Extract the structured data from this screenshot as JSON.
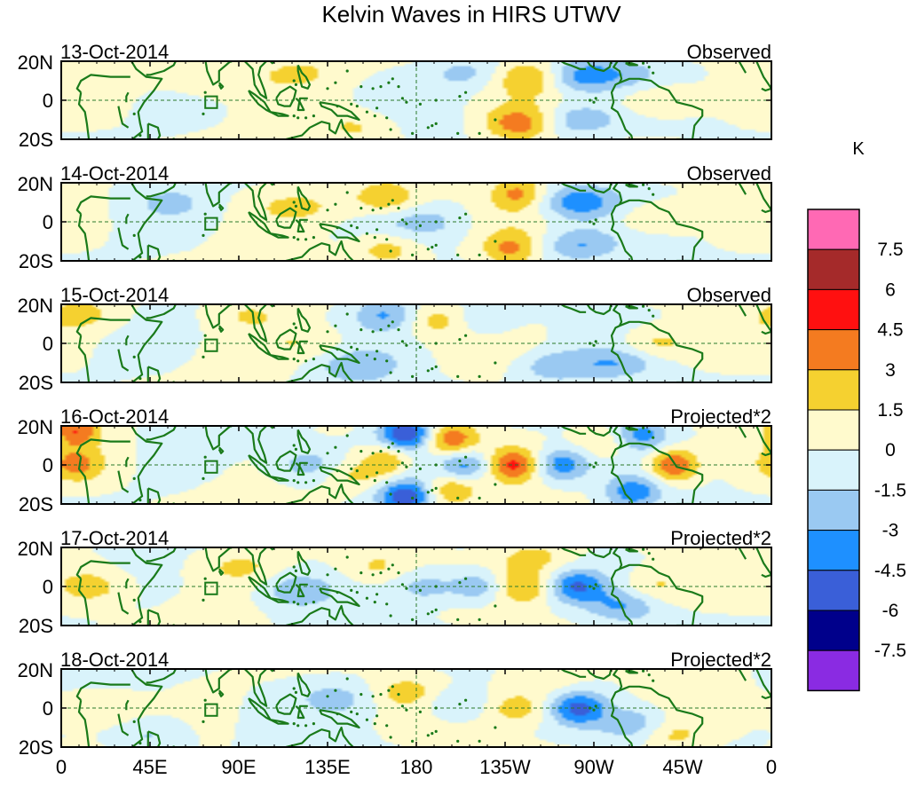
{
  "chart_data": {
    "type": "heatmap",
    "title": "Kelvin Waves in HIRS UTWV",
    "colorbar": {
      "unit": "K",
      "levels": [
        -7.5,
        -6,
        -4.5,
        -3,
        -1.5,
        0,
        1.5,
        3,
        4.5,
        6,
        7.5
      ],
      "colors": [
        "#8a2be2",
        "#00008b",
        "#3a5fd8",
        "#1e90ff",
        "#9ac9f2",
        "#d9f3fb",
        "#fffacd",
        "#f5d130",
        "#f47b20",
        "#ff1010",
        "#a52a2a",
        "#ff69b4"
      ]
    },
    "lon_ticks": [
      "0",
      "45E",
      "90E",
      "135E",
      "180",
      "135W",
      "90W",
      "45W",
      "0"
    ],
    "lat_ticks": [
      "20N",
      "0",
      "20S"
    ],
    "lat_range": [
      -20,
      20
    ],
    "lon_range": [
      0,
      360
    ],
    "panels": [
      {
        "date": "13-Oct-2014",
        "label": "Observed",
        "amp": 0.32,
        "phase": 0,
        "blobs": [
          {
            "lon": 78,
            "lat": 9,
            "v": 1.2,
            "w": 22
          },
          {
            "lon": 150,
            "lat": -14,
            "v": 1.8,
            "w": 14
          },
          {
            "lon": 205,
            "lat": 14,
            "v": -2.0,
            "w": 14
          },
          {
            "lon": 262,
            "lat": 12,
            "v": -3.5,
            "w": 14
          },
          {
            "lon": 262,
            "lat": -10,
            "v": -3.0,
            "w": 14
          },
          {
            "lon": 238,
            "lat": 12,
            "v": 3.2,
            "w": 12
          },
          {
            "lon": 232,
            "lat": -12,
            "v": 3.6,
            "w": 12
          },
          {
            "lon": 305,
            "lat": 0,
            "v": 2.5,
            "w": 16
          },
          {
            "lon": 285,
            "lat": 14,
            "v": -1.5,
            "w": 14
          },
          {
            "lon": 120,
            "lat": 15,
            "v": 1.6,
            "w": 16
          }
        ]
      },
      {
        "date": "14-Oct-2014",
        "label": "Observed",
        "amp": 0.32,
        "phase": 0.5,
        "blobs": [
          {
            "lon": 262,
            "lat": 10,
            "v": -4.0,
            "w": 14
          },
          {
            "lon": 262,
            "lat": -12,
            "v": -3.2,
            "w": 14
          },
          {
            "lon": 232,
            "lat": 15,
            "v": 3.3,
            "w": 10
          },
          {
            "lon": 228,
            "lat": -14,
            "v": 3.0,
            "w": 10
          },
          {
            "lon": 165,
            "lat": 12,
            "v": 2.8,
            "w": 12
          },
          {
            "lon": 165,
            "lat": -14,
            "v": 2.6,
            "w": 12
          },
          {
            "lon": 185,
            "lat": 0,
            "v": -1.8,
            "w": 16
          },
          {
            "lon": 120,
            "lat": 8,
            "v": 1.6,
            "w": 18
          },
          {
            "lon": 300,
            "lat": 2,
            "v": 2.2,
            "w": 16
          },
          {
            "lon": 55,
            "lat": 10,
            "v": -1.5,
            "w": 14
          }
        ]
      },
      {
        "date": "15-Oct-2014",
        "label": "Observed",
        "amp": 0.32,
        "phase": 1.0,
        "blobs": [
          {
            "lon": 165,
            "lat": 15,
            "v": -3.2,
            "w": 12
          },
          {
            "lon": 150,
            "lat": -12,
            "v": -2.4,
            "w": 14
          },
          {
            "lon": 190,
            "lat": 12,
            "v": 2.2,
            "w": 12
          },
          {
            "lon": 214,
            "lat": 12,
            "v": -2.0,
            "w": 12
          },
          {
            "lon": 250,
            "lat": -12,
            "v": -2.8,
            "w": 14
          },
          {
            "lon": 282,
            "lat": -10,
            "v": -2.4,
            "w": 14
          },
          {
            "lon": 300,
            "lat": 0,
            "v": 2.4,
            "w": 14
          },
          {
            "lon": 10,
            "lat": 15,
            "v": 2.0,
            "w": 14
          },
          {
            "lon": 95,
            "lat": 15,
            "v": 1.6,
            "w": 14
          },
          {
            "lon": 125,
            "lat": 0,
            "v": 1.4,
            "w": 16
          }
        ]
      },
      {
        "date": "16-Oct-2014",
        "label": "Projected*2",
        "amp": 0.2,
        "phase": 0.2,
        "blobs": [
          {
            "lon": 8,
            "lat": 0,
            "v": 3.2,
            "w": 10
          },
          {
            "lon": 8,
            "lat": 18,
            "v": 4.2,
            "w": 8
          },
          {
            "lon": 175,
            "lat": 16,
            "v": -6.5,
            "w": 10
          },
          {
            "lon": 175,
            "lat": -16,
            "v": -5.5,
            "w": 10
          },
          {
            "lon": 197,
            "lat": 13,
            "v": 4.4,
            "w": 10
          },
          {
            "lon": 197,
            "lat": -13,
            "v": 3.4,
            "w": 10
          },
          {
            "lon": 205,
            "lat": 0,
            "v": -4.0,
            "w": 10
          },
          {
            "lon": 229,
            "lat": 0,
            "v": 4.5,
            "w": 10
          },
          {
            "lon": 253,
            "lat": 0,
            "v": -4.5,
            "w": 10
          },
          {
            "lon": 278,
            "lat": 12,
            "v": 2.2,
            "w": 12
          },
          {
            "lon": 293,
            "lat": 15,
            "v": -4.0,
            "w": 10
          },
          {
            "lon": 290,
            "lat": -14,
            "v": -4.0,
            "w": 10
          },
          {
            "lon": 310,
            "lat": 0,
            "v": 5.2,
            "w": 9
          },
          {
            "lon": 125,
            "lat": 0,
            "v": -2.5,
            "w": 12
          },
          {
            "lon": 150,
            "lat": -5,
            "v": 2.2,
            "w": 12
          },
          {
            "lon": 165,
            "lat": 3,
            "v": 3.0,
            "w": 8
          }
        ]
      },
      {
        "date": "17-Oct-2014",
        "label": "Projected*2",
        "amp": 0.2,
        "phase": 1.4,
        "blobs": [
          {
            "lon": 15,
            "lat": 0,
            "v": 2.4,
            "w": 12
          },
          {
            "lon": 90,
            "lat": 10,
            "v": 1.8,
            "w": 14
          },
          {
            "lon": 120,
            "lat": -2,
            "v": -2.8,
            "w": 12
          },
          {
            "lon": 160,
            "lat": 10,
            "v": 1.8,
            "w": 12
          },
          {
            "lon": 185,
            "lat": 0,
            "v": -2.2,
            "w": 12
          },
          {
            "lon": 212,
            "lat": 0,
            "v": -3.2,
            "w": 10
          },
          {
            "lon": 236,
            "lat": 0,
            "v": 3.2,
            "w": 12
          },
          {
            "lon": 260,
            "lat": 0,
            "v": -4.6,
            "w": 11
          },
          {
            "lon": 285,
            "lat": -10,
            "v": -2.8,
            "w": 12
          },
          {
            "lon": 300,
            "lat": 0,
            "v": 2.0,
            "w": 12
          },
          {
            "lon": 240,
            "lat": 15,
            "v": 2.2,
            "w": 14
          }
        ]
      },
      {
        "date": "18-Oct-2014",
        "label": "Projected*2",
        "amp": 0.2,
        "phase": 2.6,
        "blobs": [
          {
            "lon": 20,
            "lat": 0,
            "v": 1.6,
            "w": 14
          },
          {
            "lon": 45,
            "lat": -14,
            "v": -1.8,
            "w": 12
          },
          {
            "lon": 140,
            "lat": 5,
            "v": -2.0,
            "w": 14
          },
          {
            "lon": 175,
            "lat": 8,
            "v": 2.0,
            "w": 12
          },
          {
            "lon": 200,
            "lat": 2,
            "v": -2.2,
            "w": 12
          },
          {
            "lon": 232,
            "lat": 0,
            "v": 2.6,
            "w": 12
          },
          {
            "lon": 262,
            "lat": 0,
            "v": -4.6,
            "w": 10
          },
          {
            "lon": 290,
            "lat": -8,
            "v": -2.6,
            "w": 12
          },
          {
            "lon": 310,
            "lat": -14,
            "v": 2.0,
            "w": 12
          },
          {
            "lon": 245,
            "lat": 14,
            "v": 1.6,
            "w": 14
          }
        ]
      }
    ]
  }
}
